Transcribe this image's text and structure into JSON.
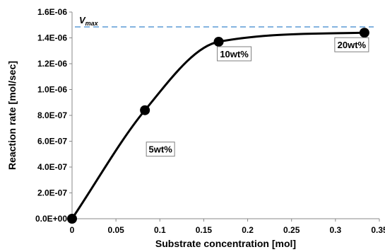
{
  "chart_data": {
    "type": "scatter",
    "xlabel": "Substrate concentration [mol]",
    "ylabel": "Reaction rate [mol/sec]",
    "xlim": [
      0,
      0.35
    ],
    "ylim": [
      0,
      1.6e-06
    ],
    "x_ticks": [
      "0",
      "0.05",
      "0.1",
      "0.15",
      "0.2",
      "0.25",
      "0.3",
      "0.35"
    ],
    "y_ticks": [
      "0.0E+00",
      "2.0E-07",
      "4.0E-07",
      "6.0E-07",
      "8.0E-07",
      "1.0E-06",
      "1.2E-06",
      "1.4E-06",
      "1.6E-06"
    ],
    "grid": false,
    "series": [
      {
        "x": [
          0,
          0.083,
          0.167,
          0.333
        ],
        "y": [
          0,
          8.4e-07,
          1.37e-06,
          1.44e-06
        ],
        "color": "#000000"
      }
    ],
    "annotations": [
      {
        "text": "5wt%",
        "x": 0.083,
        "y": 8.4e-07
      },
      {
        "text": "10wt%",
        "x": 0.167,
        "y": 1.37e-06
      },
      {
        "text": "20wt%",
        "x": 0.333,
        "y": 1.44e-06
      }
    ],
    "reference_line": {
      "label_main": "V",
      "label_sub": "max",
      "y": 1.485e-06,
      "color": "#5b9bd5",
      "style": "dashed"
    }
  }
}
